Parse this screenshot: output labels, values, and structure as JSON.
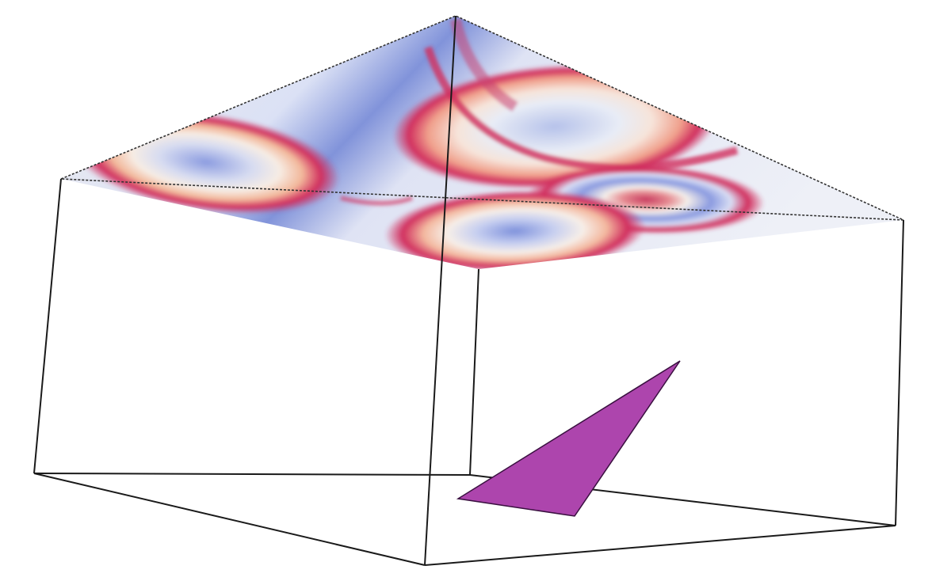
{
  "scene": {
    "background_color": "#ffffff",
    "edge_color": "#1a1a1a",
    "polygon_color": "#ad45ad",
    "polygon_edge_color": "#3a1040",
    "density_colors": {
      "low": "#6f82d8",
      "mid": "#f4efe9",
      "high": "#d1305f"
    }
  }
}
